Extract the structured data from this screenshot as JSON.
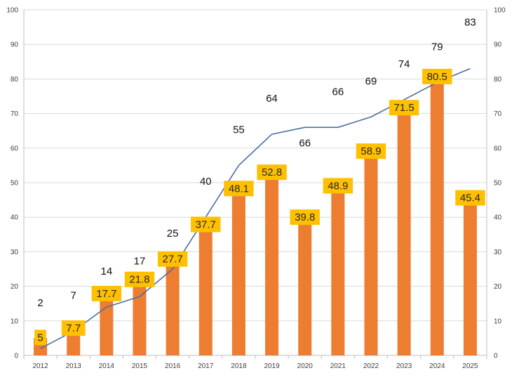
{
  "chart_data": {
    "type": "bar+line",
    "title": "",
    "xlabel": "",
    "ylabel": "",
    "ylim": [
      0,
      100
    ],
    "y_ticks": [
      0,
      10,
      20,
      30,
      40,
      50,
      60,
      70,
      80,
      90,
      100
    ],
    "y2lim": [
      0,
      100
    ],
    "grid": "horizontal",
    "categories": [
      "2012",
      "2013",
      "2014",
      "2015",
      "2016",
      "2017",
      "2018",
      "2019",
      "2020",
      "2021",
      "2022",
      "2023",
      "2024",
      "2025"
    ],
    "series": [
      {
        "name": "bars",
        "type": "bar",
        "axis": "left",
        "values": [
          5,
          7.7,
          17.7,
          21.8,
          27.7,
          37.7,
          48.1,
          52.8,
          39.8,
          48.9,
          58.9,
          71.5,
          80.5,
          45.4
        ],
        "labels": [
          "5",
          "7.7",
          "17.7",
          "21.8",
          "27.7",
          "37.7",
          "48.1",
          "52.8",
          "39.8",
          "48.9",
          "58.9",
          "71.5",
          "80.5",
          "45.4"
        ]
      },
      {
        "name": "line",
        "type": "line",
        "axis": "right",
        "values": [
          2,
          7,
          14,
          17,
          25,
          40,
          55,
          64,
          66,
          66,
          69,
          74,
          79,
          83
        ],
        "labels": [
          "2",
          "7",
          "14",
          "17",
          "25",
          "40",
          "55",
          "64",
          "66",
          "66",
          "69",
          "74",
          "79",
          "83"
        ]
      }
    ],
    "colors": {
      "bar": "#ed7d31",
      "bar_label_bg": "#ffc000",
      "line": "#4a6fa5",
      "grid": "#d9d9d9",
      "axis": "#bfbfbf"
    }
  }
}
